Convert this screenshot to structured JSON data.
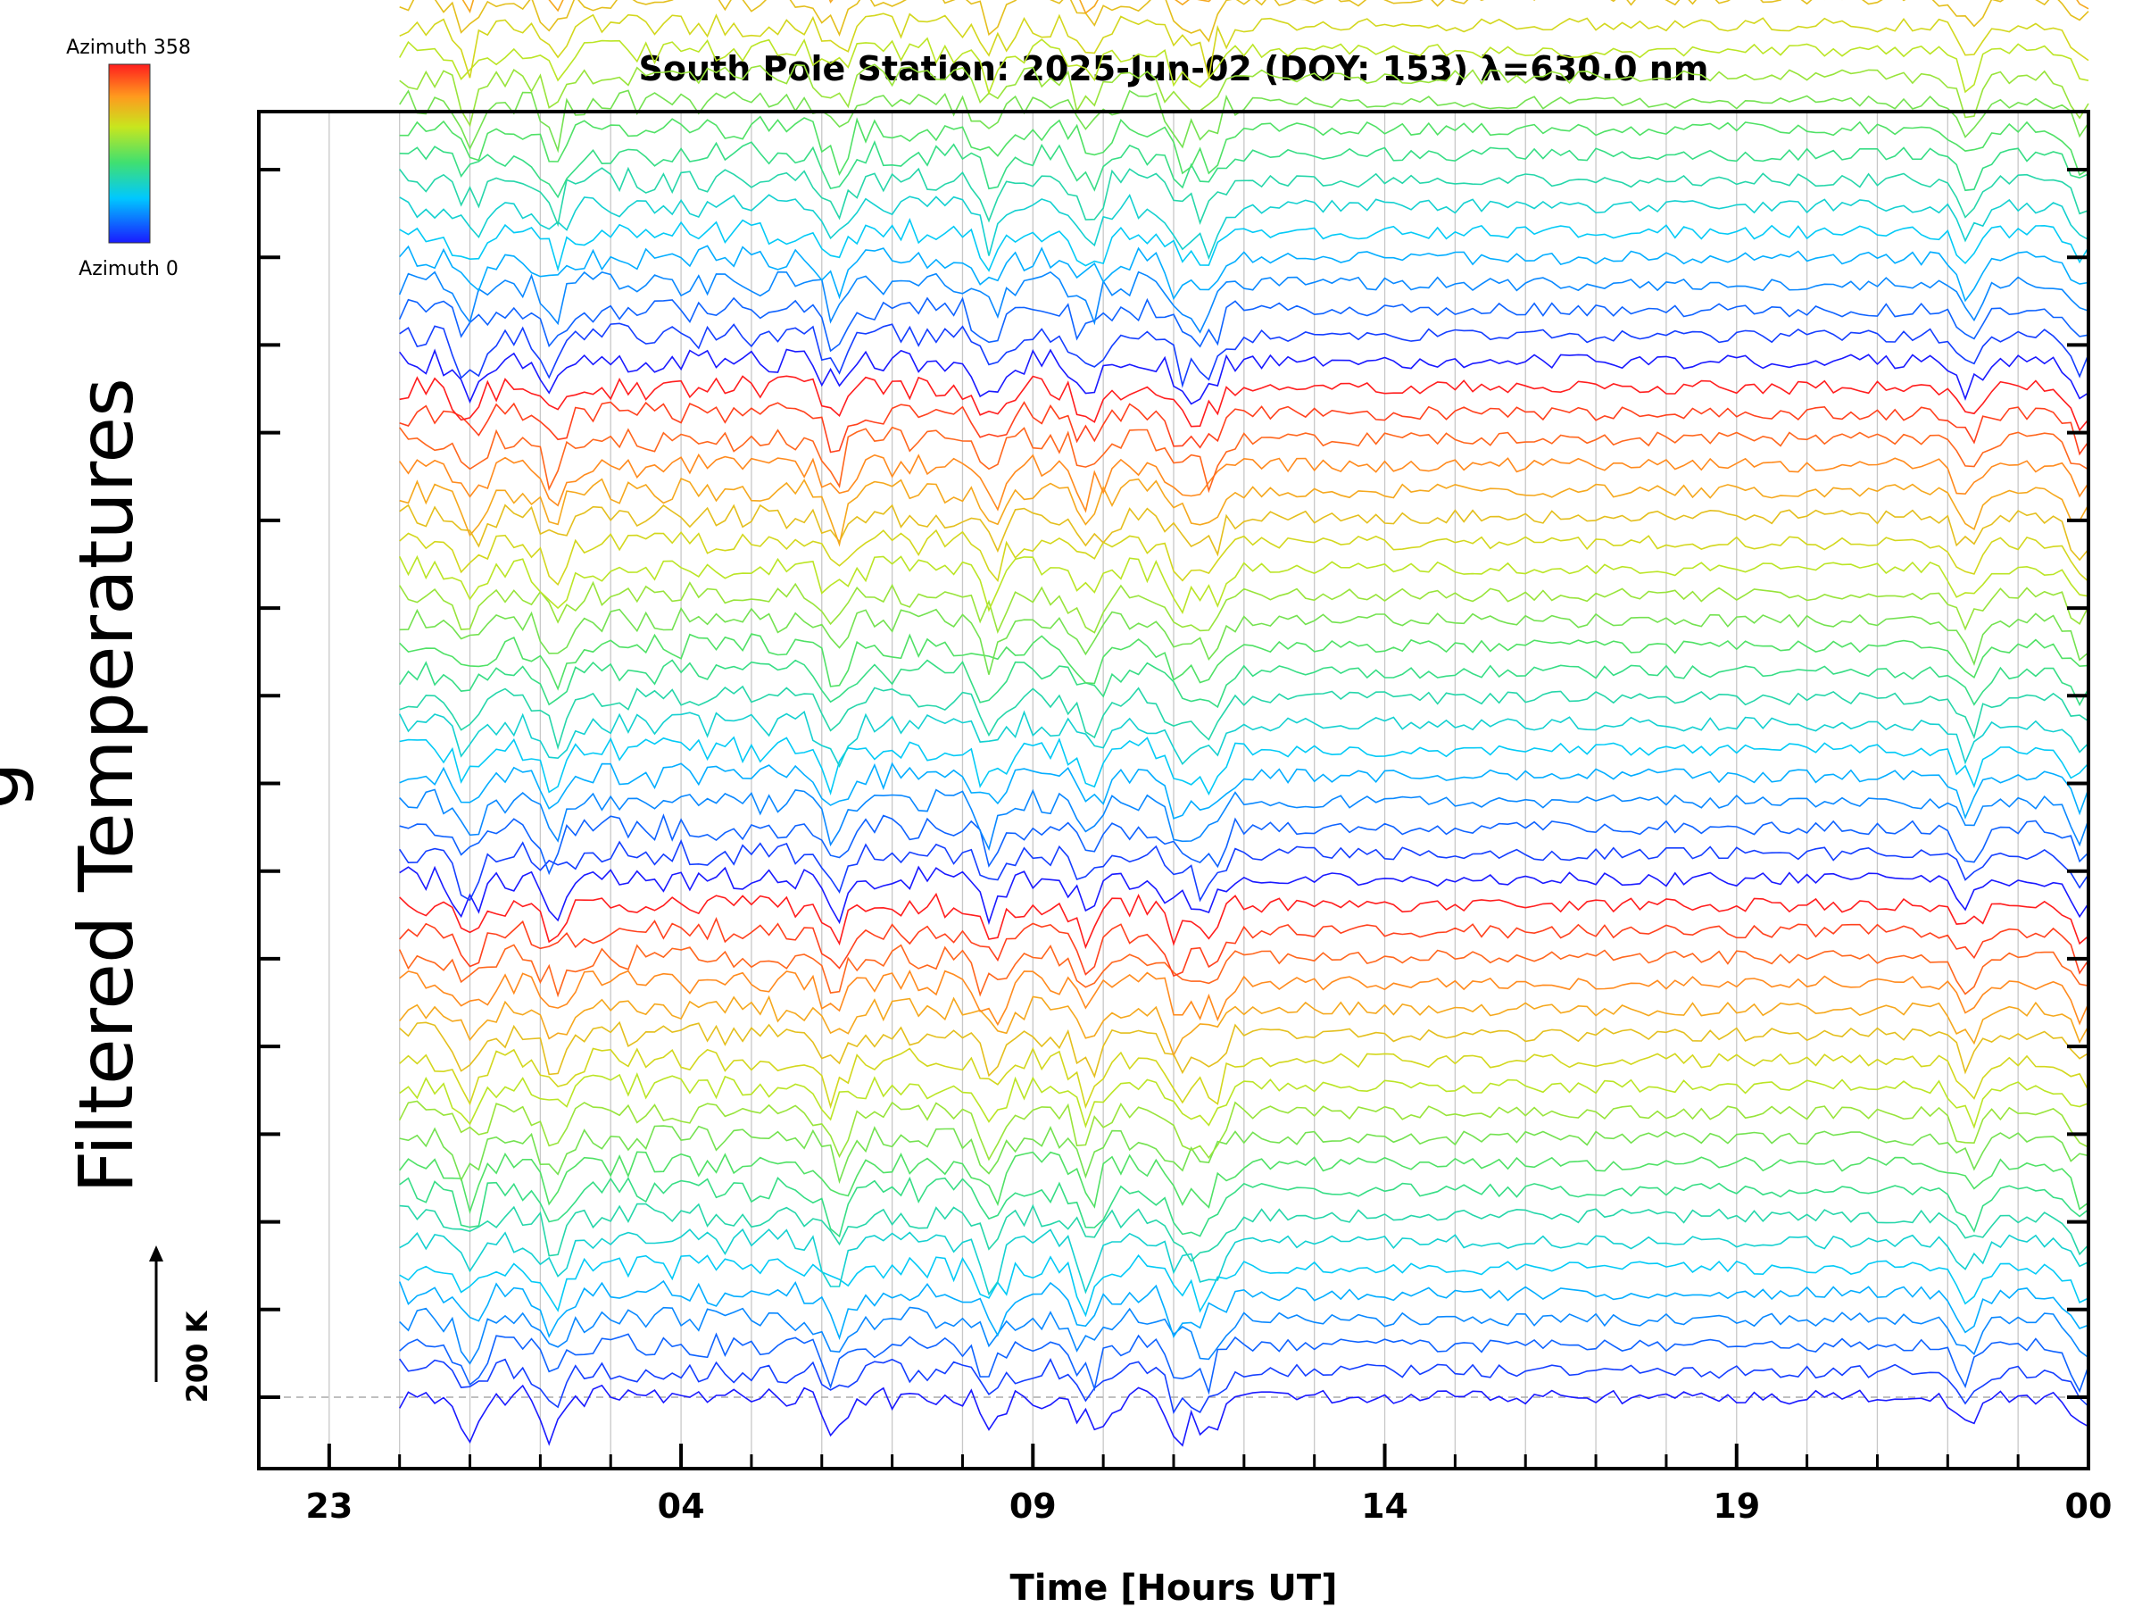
{
  "chart_data": {
    "type": "line",
    "title": "South Pole Station: 2025-Jun-02 (DOY: 153) λ=630.0 nm",
    "xlabel": "Time [Hours UT]",
    "ylabel": "Filtered Temperatures",
    "ylabel_cut": "g",
    "x_tick_labels": [
      "23",
      "04",
      "09",
      "14",
      "19",
      "00"
    ],
    "x_tick_hours_since_start": [
      1,
      6,
      11,
      16,
      21,
      26
    ],
    "xlim_hours_since_start": [
      0,
      26
    ],
    "data_start_hour": 2,
    "data_end_hour": 26,
    "scale_label": "200 K",
    "scale_kelvin": 200,
    "colorbar": {
      "max_label": "Azimuth 358",
      "min_label": "Azimuth 0",
      "min": 0,
      "max": 358
    },
    "num_groups": 6,
    "traces_per_group": 20,
    "group_offset_kelvin": 800,
    "trace_spacing_kelvin": 40,
    "y_ticks": 15,
    "grid": "vertical, hourly",
    "baseline_dashed": true,
    "disturbance_hours": [
      3,
      4.2,
      8.2,
      10.4,
      11.8,
      13.1,
      13.5,
      24.3,
      25.9
    ],
    "colors": {
      "axis": "#000000",
      "grid": "#c8c8c8"
    }
  }
}
